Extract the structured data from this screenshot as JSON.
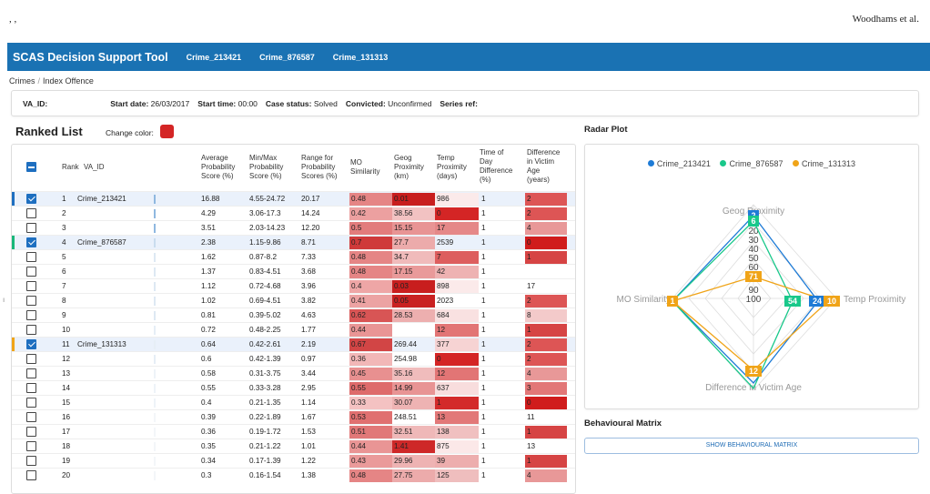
{
  "page_header": {
    "left": ", ,",
    "right": "Woodhams et al."
  },
  "app": {
    "title": "SCAS Decision Support Tool",
    "tabs": [
      "Crime_213421",
      "Crime_876587",
      "Crime_131313"
    ]
  },
  "breadcrumb": {
    "root": "Crimes",
    "separator": "/",
    "current": "Index Offence"
  },
  "info_bar": {
    "va_id_label": "VA_ID:",
    "start_date_label": "Start date:",
    "start_date": "26/03/2017",
    "start_time_label": "Start time:",
    "start_time": "00:00",
    "case_status_label": "Case status:",
    "case_status": "Solved",
    "convicted_label": "Convicted:",
    "convicted": "Unconfirmed",
    "series_ref_label": "Series ref:"
  },
  "ranked_list": {
    "title": "Ranked List",
    "change_color_label": "Change color:",
    "accent_color": "#d42525",
    "columns": {
      "rank": "Rank",
      "va_id": "VA_ID",
      "avg": [
        "Average",
        "Probability",
        "Score (%)"
      ],
      "minmax": [
        "Min/Max",
        "Probability",
        "Score (%)"
      ],
      "range": [
        "Range for",
        "Probability",
        "Scores (%)"
      ],
      "mo": [
        "MO",
        "Similarity"
      ],
      "geog": [
        "Geog",
        "Proximity",
        "(km)"
      ],
      "temp": [
        "Temp",
        "Proximity",
        "(days)"
      ],
      "tod": [
        "Time of",
        "Day",
        "Difference",
        "(%)"
      ],
      "age": [
        "Difference",
        "in Victim",
        "Age",
        "(years)"
      ]
    },
    "rows": [
      {
        "rank": "1",
        "va_id": "Crime_213421",
        "checked": true,
        "mark": "#1e6fc0",
        "bar": "#8fb8e0",
        "avg": "16.88",
        "minmax": "4.55-24.72",
        "range": "20.17",
        "mo": "0.48",
        "mo_c": "#e58585",
        "geog": "0.01",
        "geog_c": "#c81e1e",
        "temp": "986",
        "temp_c": "#fbeaea",
        "tod": "1",
        "age": "2",
        "age_c": "#dd5555"
      },
      {
        "rank": "2",
        "va_id": "",
        "checked": false,
        "mark": "",
        "bar": "#8fb8e0",
        "avg": "4.29",
        "minmax": "3.06-17.3",
        "range": "14.24",
        "mo": "0.42",
        "mo_c": "#eca0a0",
        "geog": "38.56",
        "geog_c": "#f2c2c2",
        "temp": "0",
        "temp_c": "#d42525",
        "tod": "1",
        "age": "2",
        "age_c": "#dd5555"
      },
      {
        "rank": "3",
        "va_id": "",
        "checked": false,
        "mark": "",
        "bar": "#8fb8e0",
        "avg": "3.51",
        "minmax": "2.03-14.23",
        "range": "12.20",
        "mo": "0.5",
        "mo_c": "#e27c7c",
        "geog": "15.15",
        "geog_c": "#e89494",
        "temp": "17",
        "temp_c": "#e58888",
        "tod": "1",
        "age": "4",
        "age_c": "#e89898"
      },
      {
        "rank": "4",
        "va_id": "Crime_876587",
        "checked": true,
        "mark": "#19b77a",
        "bar": "#c9dcee",
        "avg": "2.38",
        "minmax": "1.15-9.86",
        "range": "8.71",
        "mo": "0.7",
        "mo_c": "#cf3a3a",
        "geog": "27.7",
        "geog_c": "#ecabab",
        "temp": "2539",
        "temp_c": "",
        "tod": "1",
        "age": "0",
        "age_c": "#d01c1c"
      },
      {
        "rank": "5",
        "va_id": "",
        "checked": false,
        "mark": "",
        "bar": "#dde8f3",
        "avg": "1.62",
        "minmax": "0.87-8.2",
        "range": "7.33",
        "mo": "0.48",
        "mo_c": "#e58585",
        "geog": "34.7",
        "geog_c": "#f0bbbb",
        "temp": "7",
        "temp_c": "#dd5e5e",
        "tod": "1",
        "age": "1",
        "age_c": "#d64444"
      },
      {
        "rank": "6",
        "va_id": "",
        "checked": false,
        "mark": "",
        "bar": "#dde8f3",
        "avg": "1.37",
        "minmax": "0.83-4.51",
        "range": "3.68",
        "mo": "0.48",
        "mo_c": "#e58585",
        "geog": "17.15",
        "geog_c": "#e99a9a",
        "temp": "42",
        "temp_c": "#eeb2b2",
        "tod": "1",
        "age": "",
        "age_c": ""
      },
      {
        "rank": "7",
        "va_id": "",
        "checked": false,
        "mark": "",
        "bar": "#dde8f3",
        "avg": "1.12",
        "minmax": "0.72-4.68",
        "range": "3.96",
        "mo": "0.4",
        "mo_c": "#eea6a6",
        "geog": "0.03",
        "geog_c": "#c81e1e",
        "temp": "898",
        "temp_c": "#fbeaea",
        "tod": "1",
        "age": "17",
        "age_c": ""
      },
      {
        "rank": "8",
        "va_id": "",
        "checked": false,
        "mark": "",
        "bar": "#dde8f3",
        "avg": "1.02",
        "minmax": "0.69-4.51",
        "range": "3.82",
        "mo": "0.41",
        "mo_c": "#eca3a3",
        "geog": "0.05",
        "geog_c": "#c92121",
        "temp": "2023",
        "temp_c": "",
        "tod": "1",
        "age": "2",
        "age_c": "#dd5555"
      },
      {
        "rank": "9",
        "va_id": "",
        "checked": false,
        "mark": "",
        "bar": "#dde8f3",
        "avg": "0.81",
        "minmax": "0.39-5.02",
        "range": "4.63",
        "mo": "0.62",
        "mo_c": "#d85555",
        "geog": "28.53",
        "geog_c": "#edafaf",
        "temp": "684",
        "temp_c": "#f9e1e1",
        "tod": "1",
        "age": "8",
        "age_c": "#f3caca"
      },
      {
        "rank": "10",
        "va_id": "",
        "checked": false,
        "mark": "",
        "bar": "#e6eef6",
        "avg": "0.72",
        "minmax": "0.48-2.25",
        "range": "1.77",
        "mo": "0.44",
        "mo_c": "#e99595",
        "geog": "",
        "geog_c": "",
        "temp": "12",
        "temp_c": "#e27575",
        "tod": "1",
        "age": "1",
        "age_c": "#d64444"
      },
      {
        "rank": "11",
        "va_id": "Crime_131313",
        "checked": true,
        "mark": "#f0a418",
        "bar": "#e6eef6",
        "avg": "0.64",
        "minmax": "0.42-2.61",
        "range": "2.19",
        "mo": "0.67",
        "mo_c": "#d24545",
        "geog": "269.44",
        "geog_c": "",
        "temp": "377",
        "temp_c": "#f6d3d3",
        "tod": "1",
        "age": "2",
        "age_c": "#dd5555"
      },
      {
        "rank": "12",
        "va_id": "",
        "checked": false,
        "mark": "",
        "bar": "#e6eef6",
        "avg": "0.6",
        "minmax": "0.42-1.39",
        "range": "0.97",
        "mo": "0.36",
        "mo_c": "#f2b7b7",
        "geog": "254.98",
        "geog_c": "",
        "temp": "0",
        "temp_c": "#d42525",
        "tod": "1",
        "age": "2",
        "age_c": "#dd5555"
      },
      {
        "rank": "13",
        "va_id": "",
        "checked": false,
        "mark": "",
        "bar": "#eef3f8",
        "avg": "0.58",
        "minmax": "0.31-3.75",
        "range": "3.44",
        "mo": "0.45",
        "mo_c": "#e89090",
        "geog": "35.16",
        "geog_c": "#f0bcbc",
        "temp": "12",
        "temp_c": "#e27575",
        "tod": "1",
        "age": "4",
        "age_c": "#e89898"
      },
      {
        "rank": "14",
        "va_id": "",
        "checked": false,
        "mark": "",
        "bar": "#eef3f8",
        "avg": "0.55",
        "minmax": "0.33-3.28",
        "range": "2.95",
        "mo": "0.55",
        "mo_c": "#de6b6b",
        "geog": "14.99",
        "geog_c": "#e89494",
        "temp": "637",
        "temp_c": "#f8dddd",
        "tod": "1",
        "age": "3",
        "age_c": "#e27777"
      },
      {
        "rank": "15",
        "va_id": "",
        "checked": false,
        "mark": "",
        "bar": "#eef3f8",
        "avg": "0.4",
        "minmax": "0.21-1.35",
        "range": "1.14",
        "mo": "0.33",
        "mo_c": "#f4c2c2",
        "geog": "30.07",
        "geog_c": "#eeb3b3",
        "temp": "1",
        "temp_c": "#d32a2a",
        "tod": "1",
        "age": "0",
        "age_c": "#d01c1c"
      },
      {
        "rank": "16",
        "va_id": "",
        "checked": false,
        "mark": "",
        "bar": "#f3f6f9",
        "avg": "0.39",
        "minmax": "0.22-1.89",
        "range": "1.67",
        "mo": "0.53",
        "mo_c": "#e07070",
        "geog": "248.51",
        "geog_c": "",
        "temp": "13",
        "temp_c": "#e27878",
        "tod": "1",
        "age": "11",
        "age_c": ""
      },
      {
        "rank": "17",
        "va_id": "",
        "checked": false,
        "mark": "",
        "bar": "#f3f6f9",
        "avg": "0.36",
        "minmax": "0.19-1.72",
        "range": "1.53",
        "mo": "0.51",
        "mo_c": "#e17878",
        "geog": "32.51",
        "geog_c": "#efb8b8",
        "temp": "138",
        "temp_c": "#f0c0c0",
        "tod": "1",
        "age": "1",
        "age_c": "#d64444"
      },
      {
        "rank": "18",
        "va_id": "",
        "checked": false,
        "mark": "",
        "bar": "#f3f6f9",
        "avg": "0.35",
        "minmax": "0.21-1.22",
        "range": "1.01",
        "mo": "0.44",
        "mo_c": "#e99595",
        "geog": "1.41",
        "geog_c": "#ce2828",
        "temp": "875",
        "temp_c": "#fbe8e8",
        "tod": "1",
        "age": "13",
        "age_c": ""
      },
      {
        "rank": "19",
        "va_id": "",
        "checked": false,
        "mark": "",
        "bar": "#f3f6f9",
        "avg": "0.34",
        "minmax": "0.17-1.39",
        "range": "1.22",
        "mo": "0.43",
        "mo_c": "#ea9a9a",
        "geog": "29.96",
        "geog_c": "#eeb3b3",
        "temp": "39",
        "temp_c": "#edaeae",
        "tod": "1",
        "age": "1",
        "age_c": "#d64444"
      },
      {
        "rank": "20",
        "va_id": "",
        "checked": false,
        "mark": "",
        "bar": "#f3f6f9",
        "avg": "0.3",
        "minmax": "0.16-1.54",
        "range": "1.38",
        "mo": "0.48",
        "mo_c": "#e58585",
        "geog": "27.75",
        "geog_c": "#ecabab",
        "temp": "125",
        "temp_c": "#efbebe",
        "tod": "1",
        "age": "4",
        "age_c": "#e89898"
      }
    ]
  },
  "radar": {
    "title": "Radar Plot",
    "axes": {
      "top": "Geog Proximity",
      "left": "MO Similarity",
      "right": "Temp Proximity",
      "bottom": "Difference in Victim Age"
    },
    "scale_labels": [
      "20",
      "30",
      "40",
      "50",
      "60",
      "90",
      "100"
    ],
    "series": [
      {
        "name": "Crime_213421",
        "color": "#1e7bd6",
        "values": {
          "geog": "2",
          "mo": "1",
          "temp": "24",
          "age": "2"
        }
      },
      {
        "name": "Crime_876587",
        "color": "#19c88a",
        "values": {
          "geog": "6",
          "mo": "1",
          "temp": "54",
          "age": "0"
        }
      },
      {
        "name": "Crime_131313",
        "color": "#f0a418",
        "values": {
          "geog": "71",
          "mo": "1",
          "temp": "10",
          "age": "12"
        }
      }
    ]
  },
  "behavioural_matrix": {
    "title": "Behavioural Matrix",
    "button_label": "SHOW BEHAVIOURAL MATRIX"
  }
}
